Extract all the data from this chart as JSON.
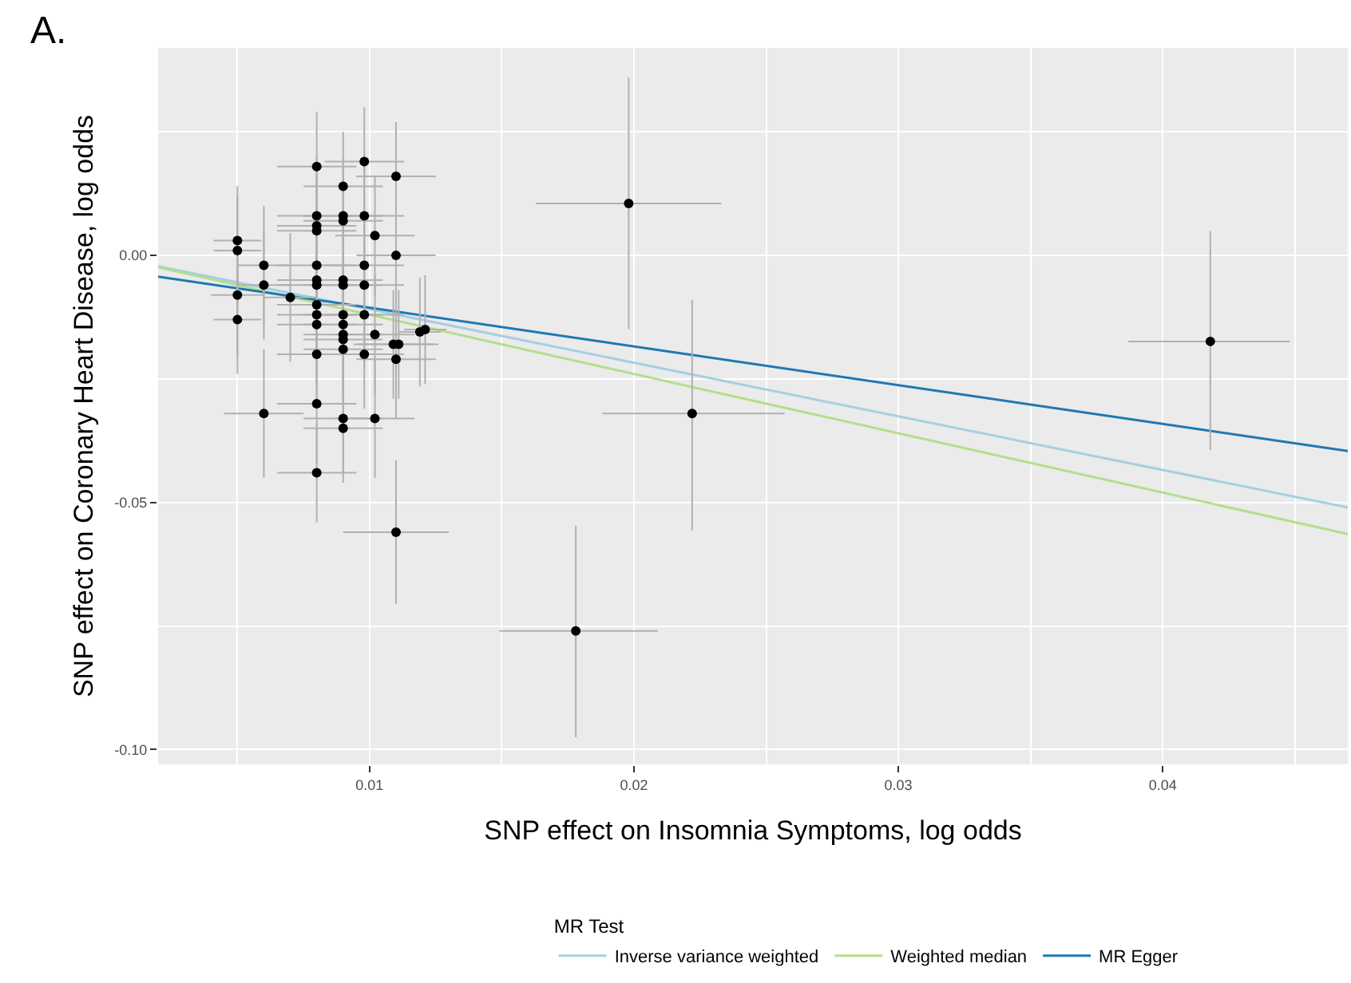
{
  "chart_data": {
    "type": "scatter",
    "xlabel": "SNP effect on Insomnia Symptoms, log odds",
    "ylabel": "SNP effect on Coronary Heart Disease, log odds",
    "legend_title": "MR Test",
    "annotations": [
      "A."
    ],
    "xlim": [
      0.002,
      0.047
    ],
    "ylim": [
      -0.103,
      0.042
    ],
    "xticks": [
      0.01,
      0.02,
      0.03,
      0.04
    ],
    "yticks": [
      {
        "value": 0,
        "label": "0.00"
      },
      {
        "value": -0.05,
        "label": "-0.05"
      },
      {
        "value": -0.1,
        "label": "-0.10"
      }
    ],
    "grid": true,
    "legend": "bottom",
    "marker": "circle",
    "series": [
      {
        "color": "#000000",
        "x": [
          0.005,
          0.005,
          0.005,
          0.005,
          0.006,
          0.006,
          0.006,
          0.007,
          0.008,
          0.008,
          0.008,
          0.008,
          0.008,
          0.008,
          0.008,
          0.008,
          0.008,
          0.008,
          0.008,
          0.008,
          0.008,
          0.009,
          0.009,
          0.009,
          0.009,
          0.009,
          0.009,
          0.009,
          0.009,
          0.009,
          0.009,
          0.009,
          0.009,
          0.0098,
          0.0098,
          0.0102,
          0.0098,
          0.0098,
          0.0098,
          0.0102,
          0.0098,
          0.0102,
          0.011,
          0.011,
          0.0109,
          0.0111,
          0.011,
          0.011,
          0.0119,
          0.0121,
          0.0198,
          0.0178,
          0.0222,
          0.0418
        ],
        "values": [
          0.003,
          0.001,
          -0.008,
          -0.013,
          -0.002,
          -0.006,
          -0.032,
          -0.0085,
          0.018,
          0.008,
          0.006,
          0.005,
          -0.002,
          -0.005,
          -0.006,
          -0.01,
          -0.012,
          -0.014,
          -0.02,
          -0.03,
          -0.044,
          0.014,
          0.008,
          0.007,
          -0.005,
          -0.006,
          -0.012,
          -0.014,
          -0.016,
          -0.017,
          -0.019,
          -0.033,
          -0.035,
          0.019,
          0.008,
          0.004,
          -0.002,
          -0.006,
          -0.012,
          -0.016,
          -0.02,
          -0.033,
          0.016,
          0,
          -0.018,
          -0.018,
          -0.021,
          -0.056,
          -0.0155,
          -0.015,
          0.0105,
          -0.076,
          -0.032,
          -0.0174
        ],
        "errors": [
          0.011,
          0.011,
          0.012,
          0.011,
          0.012,
          0.011,
          0.013,
          0.013,
          0.011,
          0.012,
          0.012,
          0.011,
          0.011,
          0.012,
          0.012,
          0.011,
          0.012,
          0.012,
          0.011,
          0.012,
          0.01,
          0.011,
          0.012,
          0.011,
          0.012,
          0.012,
          0.011,
          0.011,
          0.012,
          0.012,
          0.011,
          0.011,
          0.011,
          0.011,
          0.012,
          0.012,
          0.011,
          0.012,
          0.011,
          0.012,
          0.011,
          0.012,
          0.011,
          0.012,
          0.011,
          0.011,
          0.012,
          0.0145,
          0.011,
          0.011,
          [
            -0.0149,
            0.036
          ],
          [
            -0.0975,
            -0.0547
          ],
          [
            -0.0557,
            -0.009
          ],
          [
            -0.0394,
            0.0049
          ]
        ],
        "xerrors": [
          0.0009,
          0.0009,
          0.001,
          0.0009,
          0.001,
          0.001,
          0.0015,
          0.001,
          0.0015,
          0.0015,
          0.0015,
          0.0015,
          0.0015,
          0.0015,
          0.0015,
          0.0015,
          0.0015,
          0.0015,
          0.0015,
          0.0015,
          0.0015,
          0.0015,
          0.0015,
          0.0015,
          0.0015,
          0.0015,
          0.0015,
          0.0015,
          0.0015,
          0.0015,
          0.0015,
          0.0015,
          0.0015,
          0.0015,
          0.0015,
          0.0015,
          0.0015,
          0.0015,
          0.0015,
          0.0015,
          0.0015,
          0.0015,
          0.0015,
          0.0015,
          0.0015,
          0.0015,
          0.0015,
          [
            0.009,
            0.013
          ],
          0.0008,
          0.0008,
          [
            0.0163,
            0.0233
          ],
          [
            0.0149,
            0.0209
          ],
          [
            0.0188,
            0.0257
          ],
          [
            0.0387,
            0.0448
          ]
        ]
      },
      {
        "type": "line",
        "marker": "none",
        "name": "Inverse variance weighted",
        "color": "#a6cee3",
        "x": [
          0.002,
          0.047
        ],
        "values": [
          -0.0022,
          -0.051
        ]
      },
      {
        "type": "line",
        "marker": "none",
        "name": "Weighted median",
        "color": "#b2df8a",
        "x": [
          0.002,
          0.047
        ],
        "values": [
          -0.0024,
          -0.0564
        ]
      },
      {
        "type": "line",
        "marker": "none",
        "name": "MR Egger",
        "color": "#1f78b4",
        "x": [
          0.002,
          0.047
        ],
        "values": [
          -0.0043,
          -0.0396
        ]
      }
    ]
  }
}
